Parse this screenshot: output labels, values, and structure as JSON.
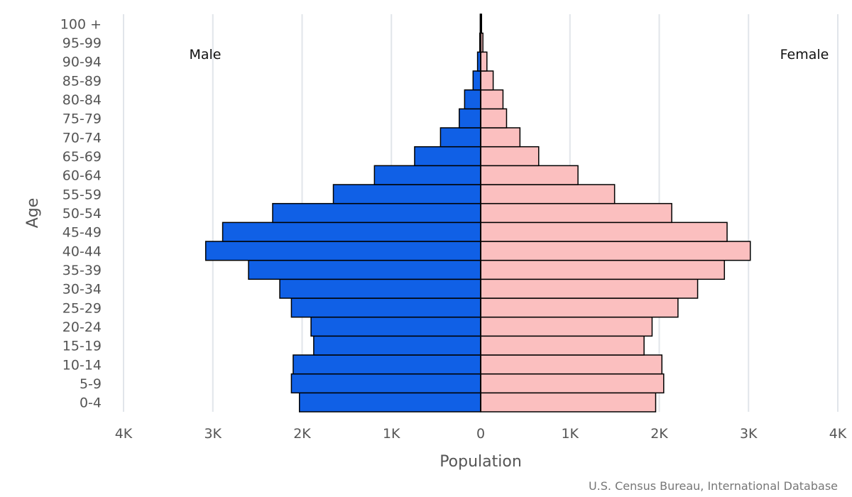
{
  "chart_data": {
    "type": "bar",
    "orientation": "horizontal",
    "subtype": "population-pyramid",
    "xlabel": "Population",
    "ylabel": "Age",
    "xlim": [
      -4000,
      4000
    ],
    "x_ticks": [
      -4000,
      -3000,
      -2000,
      -1000,
      0,
      1000,
      2000,
      3000,
      4000
    ],
    "x_tick_labels": [
      "4K",
      "3K",
      "2K",
      "1K",
      "0",
      "1K",
      "2K",
      "3K",
      "4K"
    ],
    "grid": true,
    "legend": "none",
    "side_labels": {
      "left": "Male",
      "right": "Female"
    },
    "categories": [
      "0-4",
      "5-9",
      "10-14",
      "15-19",
      "20-24",
      "25-29",
      "30-34",
      "35-39",
      "40-44",
      "45-49",
      "50-54",
      "55-59",
      "60-64",
      "65-69",
      "70-74",
      "75-79",
      "80-84",
      "85-89",
      "90-94",
      "95-99",
      "100 +"
    ],
    "series": [
      {
        "name": "Male",
        "color": "#1060e6",
        "values": [
          2030,
          2120,
          2100,
          1870,
          1900,
          2120,
          2250,
          2600,
          3080,
          2890,
          2330,
          1650,
          1190,
          740,
          450,
          240,
          180,
          85,
          35,
          10,
          5
        ]
      },
      {
        "name": "Female",
        "color": "#fbbfbf",
        "values": [
          1960,
          2050,
          2030,
          1830,
          1920,
          2210,
          2430,
          2730,
          3020,
          2760,
          2140,
          1500,
          1090,
          650,
          440,
          290,
          250,
          140,
          70,
          25,
          10
        ]
      }
    ]
  },
  "source": "U.S. Census Bureau, International Database"
}
